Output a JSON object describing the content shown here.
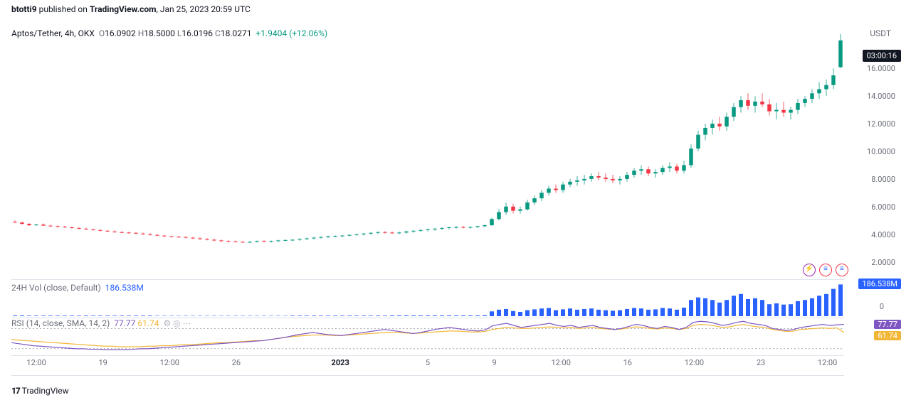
{
  "publish": {
    "author": "btotti9",
    "site": "TradingView.com",
    "date": "Jan 25, 2023 20:59 UTC"
  },
  "legend": {
    "symbol": "Aptos/Tether, 4h, OKX",
    "O": "16.0902",
    "H": "18.5000",
    "L": "16.0196",
    "C": "18.0271",
    "chg": "+1.9404",
    "pct": "(+12.06%)"
  },
  "axis": {
    "right_label": "USDT",
    "countdown": "03:00:16"
  },
  "price": {
    "ylim_min": 1,
    "ylim_max": 19,
    "ticks": [
      {
        "v": 16,
        "l": "16.0000"
      },
      {
        "v": 14,
        "l": "14.0000"
      },
      {
        "v": 12,
        "l": "12.0000"
      },
      {
        "v": 10,
        "l": "10.0000"
      },
      {
        "v": 8,
        "l": "8.0000"
      },
      {
        "v": 6,
        "l": "6.0000"
      },
      {
        "v": 4,
        "l": "4.0000"
      },
      {
        "v": 2,
        "l": "2.0000"
      }
    ],
    "colors": {
      "up": "#089981",
      "down": "#f23645",
      "wick": "#6a6d78"
    },
    "candles": [
      {
        "o": 4.9,
        "h": 5.0,
        "l": 4.8,
        "c": 4.85
      },
      {
        "o": 4.85,
        "h": 4.9,
        "l": 4.7,
        "c": 4.75
      },
      {
        "o": 4.75,
        "h": 4.8,
        "l": 4.6,
        "c": 4.65
      },
      {
        "o": 4.65,
        "h": 4.75,
        "l": 4.6,
        "c": 4.7
      },
      {
        "o": 4.7,
        "h": 4.78,
        "l": 4.6,
        "c": 4.62
      },
      {
        "o": 4.62,
        "h": 4.7,
        "l": 4.55,
        "c": 4.58
      },
      {
        "o": 4.58,
        "h": 4.65,
        "l": 4.5,
        "c": 4.55
      },
      {
        "o": 4.55,
        "h": 4.6,
        "l": 4.45,
        "c": 4.5
      },
      {
        "o": 4.5,
        "h": 4.55,
        "l": 4.4,
        "c": 4.45
      },
      {
        "o": 4.45,
        "h": 4.5,
        "l": 4.35,
        "c": 4.4
      },
      {
        "o": 4.4,
        "h": 4.48,
        "l": 4.3,
        "c": 4.35
      },
      {
        "o": 4.35,
        "h": 4.4,
        "l": 4.25,
        "c": 4.3
      },
      {
        "o": 4.3,
        "h": 4.35,
        "l": 4.2,
        "c": 4.25
      },
      {
        "o": 4.25,
        "h": 4.3,
        "l": 4.15,
        "c": 4.2
      },
      {
        "o": 4.2,
        "h": 4.28,
        "l": 4.1,
        "c": 4.15
      },
      {
        "o": 4.15,
        "h": 4.22,
        "l": 4.08,
        "c": 4.12
      },
      {
        "o": 4.12,
        "h": 4.18,
        "l": 4.05,
        "c": 4.1
      },
      {
        "o": 4.1,
        "h": 4.15,
        "l": 4.0,
        "c": 4.05
      },
      {
        "o": 4.05,
        "h": 4.12,
        "l": 3.95,
        "c": 4.0
      },
      {
        "o": 4.0,
        "h": 4.08,
        "l": 3.9,
        "c": 3.95
      },
      {
        "o": 3.95,
        "h": 4.0,
        "l": 3.85,
        "c": 3.9
      },
      {
        "o": 3.9,
        "h": 3.95,
        "l": 3.8,
        "c": 3.85
      },
      {
        "o": 3.85,
        "h": 3.9,
        "l": 3.78,
        "c": 3.82
      },
      {
        "o": 3.82,
        "h": 3.88,
        "l": 3.75,
        "c": 3.8
      },
      {
        "o": 3.8,
        "h": 3.85,
        "l": 3.7,
        "c": 3.75
      },
      {
        "o": 3.75,
        "h": 3.8,
        "l": 3.65,
        "c": 3.7
      },
      {
        "o": 3.7,
        "h": 3.78,
        "l": 3.6,
        "c": 3.65
      },
      {
        "o": 3.65,
        "h": 3.72,
        "l": 3.55,
        "c": 3.6
      },
      {
        "o": 3.6,
        "h": 3.68,
        "l": 3.5,
        "c": 3.55
      },
      {
        "o": 3.55,
        "h": 3.62,
        "l": 3.45,
        "c": 3.5
      },
      {
        "o": 3.5,
        "h": 3.58,
        "l": 3.42,
        "c": 3.48
      },
      {
        "o": 3.48,
        "h": 3.55,
        "l": 3.4,
        "c": 3.45
      },
      {
        "o": 3.45,
        "h": 3.5,
        "l": 3.38,
        "c": 3.42
      },
      {
        "o": 3.42,
        "h": 3.5,
        "l": 3.35,
        "c": 3.45
      },
      {
        "o": 3.45,
        "h": 3.55,
        "l": 3.4,
        "c": 3.5
      },
      {
        "o": 3.5,
        "h": 3.58,
        "l": 3.42,
        "c": 3.48
      },
      {
        "o": 3.48,
        "h": 3.55,
        "l": 3.4,
        "c": 3.52
      },
      {
        "o": 3.52,
        "h": 3.6,
        "l": 3.45,
        "c": 3.55
      },
      {
        "o": 3.55,
        "h": 3.62,
        "l": 3.48,
        "c": 3.58
      },
      {
        "o": 3.58,
        "h": 3.65,
        "l": 3.5,
        "c": 3.6
      },
      {
        "o": 3.6,
        "h": 3.7,
        "l": 3.52,
        "c": 3.65
      },
      {
        "o": 3.65,
        "h": 3.75,
        "l": 3.58,
        "c": 3.7
      },
      {
        "o": 3.7,
        "h": 3.8,
        "l": 3.62,
        "c": 3.75
      },
      {
        "o": 3.75,
        "h": 3.85,
        "l": 3.68,
        "c": 3.8
      },
      {
        "o": 3.8,
        "h": 3.9,
        "l": 3.72,
        "c": 3.85
      },
      {
        "o": 3.85,
        "h": 3.92,
        "l": 3.78,
        "c": 3.88
      },
      {
        "o": 3.88,
        "h": 3.95,
        "l": 3.8,
        "c": 3.9
      },
      {
        "o": 3.9,
        "h": 4.0,
        "l": 3.82,
        "c": 3.95
      },
      {
        "o": 3.95,
        "h": 4.05,
        "l": 3.88,
        "c": 4.0
      },
      {
        "o": 4.0,
        "h": 4.1,
        "l": 3.9,
        "c": 4.05
      },
      {
        "o": 4.05,
        "h": 4.15,
        "l": 3.95,
        "c": 4.1
      },
      {
        "o": 4.1,
        "h": 4.2,
        "l": 4.0,
        "c": 4.15
      },
      {
        "o": 4.15,
        "h": 4.22,
        "l": 4.05,
        "c": 4.12
      },
      {
        "o": 4.12,
        "h": 4.2,
        "l": 4.02,
        "c": 4.08
      },
      {
        "o": 4.08,
        "h": 4.18,
        "l": 4.0,
        "c": 4.12
      },
      {
        "o": 4.12,
        "h": 4.25,
        "l": 4.05,
        "c": 4.2
      },
      {
        "o": 4.2,
        "h": 4.3,
        "l": 4.1,
        "c": 4.25
      },
      {
        "o": 4.25,
        "h": 4.35,
        "l": 4.15,
        "c": 4.3
      },
      {
        "o": 4.3,
        "h": 4.4,
        "l": 4.2,
        "c": 4.35
      },
      {
        "o": 4.35,
        "h": 4.45,
        "l": 4.25,
        "c": 4.4
      },
      {
        "o": 4.4,
        "h": 4.5,
        "l": 4.3,
        "c": 4.45
      },
      {
        "o": 4.45,
        "h": 4.55,
        "l": 4.35,
        "c": 4.5
      },
      {
        "o": 4.5,
        "h": 4.6,
        "l": 4.4,
        "c": 4.52
      },
      {
        "o": 4.52,
        "h": 4.6,
        "l": 4.42,
        "c": 4.48
      },
      {
        "o": 4.48,
        "h": 4.58,
        "l": 4.4,
        "c": 4.52
      },
      {
        "o": 4.52,
        "h": 4.62,
        "l": 4.45,
        "c": 4.58
      },
      {
        "o": 4.58,
        "h": 4.7,
        "l": 4.5,
        "c": 4.65
      },
      {
        "o": 4.65,
        "h": 5.2,
        "l": 4.6,
        "c": 5.1
      },
      {
        "o": 5.1,
        "h": 5.8,
        "l": 5.0,
        "c": 5.6
      },
      {
        "o": 5.6,
        "h": 6.3,
        "l": 5.4,
        "c": 6.0
      },
      {
        "o": 6.0,
        "h": 6.2,
        "l": 5.5,
        "c": 5.7
      },
      {
        "o": 5.7,
        "h": 6.0,
        "l": 5.5,
        "c": 5.8
      },
      {
        "o": 5.8,
        "h": 6.5,
        "l": 5.7,
        "c": 6.3
      },
      {
        "o": 6.3,
        "h": 6.8,
        "l": 6.1,
        "c": 6.6
      },
      {
        "o": 6.6,
        "h": 7.2,
        "l": 6.4,
        "c": 7.0
      },
      {
        "o": 7.0,
        "h": 7.5,
        "l": 6.8,
        "c": 7.3
      },
      {
        "o": 7.3,
        "h": 7.6,
        "l": 7.0,
        "c": 7.2
      },
      {
        "o": 7.2,
        "h": 7.8,
        "l": 7.0,
        "c": 7.6
      },
      {
        "o": 7.6,
        "h": 8.0,
        "l": 7.4,
        "c": 7.8
      },
      {
        "o": 7.8,
        "h": 8.2,
        "l": 7.5,
        "c": 7.9
      },
      {
        "o": 7.9,
        "h": 8.3,
        "l": 7.6,
        "c": 8.0
      },
      {
        "o": 8.0,
        "h": 8.4,
        "l": 7.8,
        "c": 8.2
      },
      {
        "o": 8.2,
        "h": 8.5,
        "l": 7.9,
        "c": 8.1
      },
      {
        "o": 8.1,
        "h": 8.4,
        "l": 7.8,
        "c": 8.0
      },
      {
        "o": 8.0,
        "h": 8.3,
        "l": 7.7,
        "c": 7.9
      },
      {
        "o": 7.9,
        "h": 8.2,
        "l": 7.6,
        "c": 8.0
      },
      {
        "o": 8.0,
        "h": 8.5,
        "l": 7.8,
        "c": 8.3
      },
      {
        "o": 8.3,
        "h": 8.8,
        "l": 8.1,
        "c": 8.6
      },
      {
        "o": 8.6,
        "h": 9.0,
        "l": 8.3,
        "c": 8.7
      },
      {
        "o": 8.7,
        "h": 8.9,
        "l": 8.2,
        "c": 8.4
      },
      {
        "o": 8.4,
        "h": 8.7,
        "l": 8.1,
        "c": 8.5
      },
      {
        "o": 8.5,
        "h": 9.0,
        "l": 8.3,
        "c": 8.8
      },
      {
        "o": 8.8,
        "h": 9.2,
        "l": 8.5,
        "c": 8.9
      },
      {
        "o": 8.9,
        "h": 9.1,
        "l": 8.4,
        "c": 8.6
      },
      {
        "o": 8.6,
        "h": 9.3,
        "l": 8.4,
        "c": 9.0
      },
      {
        "o": 9.0,
        "h": 10.5,
        "l": 8.8,
        "c": 10.2
      },
      {
        "o": 10.2,
        "h": 11.5,
        "l": 10.0,
        "c": 11.2
      },
      {
        "o": 11.2,
        "h": 12.0,
        "l": 10.8,
        "c": 11.7
      },
      {
        "o": 11.7,
        "h": 12.3,
        "l": 11.2,
        "c": 12.0
      },
      {
        "o": 12.0,
        "h": 12.5,
        "l": 11.5,
        "c": 11.8
      },
      {
        "o": 11.8,
        "h": 12.8,
        "l": 11.5,
        "c": 12.5
      },
      {
        "o": 12.5,
        "h": 13.5,
        "l": 12.2,
        "c": 13.2
      },
      {
        "o": 13.2,
        "h": 14.0,
        "l": 12.8,
        "c": 13.7
      },
      {
        "o": 13.7,
        "h": 14.2,
        "l": 13.0,
        "c": 13.3
      },
      {
        "o": 13.3,
        "h": 14.0,
        "l": 12.8,
        "c": 13.6
      },
      {
        "o": 13.6,
        "h": 14.2,
        "l": 13.2,
        "c": 13.4
      },
      {
        "o": 13.4,
        "h": 13.8,
        "l": 12.6,
        "c": 12.9
      },
      {
        "o": 12.9,
        "h": 13.5,
        "l": 12.3,
        "c": 13.0
      },
      {
        "o": 13.0,
        "h": 13.6,
        "l": 12.5,
        "c": 12.8
      },
      {
        "o": 12.8,
        "h": 13.2,
        "l": 12.3,
        "c": 13.0
      },
      {
        "o": 13.0,
        "h": 13.8,
        "l": 12.7,
        "c": 13.5
      },
      {
        "o": 13.5,
        "h": 14.0,
        "l": 13.2,
        "c": 13.8
      },
      {
        "o": 13.8,
        "h": 14.5,
        "l": 13.5,
        "c": 14.2
      },
      {
        "o": 14.2,
        "h": 15.0,
        "l": 13.8,
        "c": 14.5
      },
      {
        "o": 14.5,
        "h": 15.2,
        "l": 14.0,
        "c": 14.8
      },
      {
        "o": 14.8,
        "h": 16.0,
        "l": 14.5,
        "c": 15.5
      },
      {
        "o": 16.09,
        "h": 18.5,
        "l": 16.02,
        "c": 18.03
      }
    ]
  },
  "volume": {
    "label": "24H Vol (close, Default)",
    "value": "186.538M",
    "max": 200,
    "zero": "0",
    "color": "#2962ff",
    "bars": [
      4,
      4,
      3,
      3,
      3,
      3,
      3,
      3,
      3,
      3,
      3,
      3,
      3,
      3,
      3,
      3,
      3,
      3,
      3,
      3,
      2,
      2,
      2,
      2,
      2,
      2,
      2,
      2,
      2,
      2,
      2,
      2,
      2,
      2,
      2,
      2,
      2,
      2,
      2,
      3,
      3,
      3,
      3,
      3,
      3,
      3,
      3,
      3,
      3,
      3,
      3,
      3,
      3,
      4,
      4,
      4,
      4,
      4,
      4,
      4,
      4,
      4,
      4,
      4,
      4,
      4,
      5,
      28,
      38,
      42,
      30,
      25,
      35,
      40,
      45,
      48,
      35,
      40,
      45,
      38,
      42,
      45,
      38,
      35,
      32,
      35,
      42,
      48,
      45,
      38,
      40,
      48,
      45,
      38,
      50,
      95,
      110,
      105,
      95,
      80,
      95,
      120,
      130,
      100,
      105,
      95,
      70,
      75,
      68,
      70,
      88,
      95,
      105,
      120,
      130,
      160,
      186
    ]
  },
  "rsi": {
    "label": "RSI (14, close, SMA, 14, 2)",
    "purple_val": "77.77",
    "yellow_val": "61.74",
    "ylim_min": 20,
    "ylim_max": 90,
    "band_hi": 70,
    "band_lo": 30,
    "colors": {
      "purple": "#7e57c2",
      "yellow": "#f2b636",
      "band": "#787b86"
    },
    "purple": [
      42,
      40,
      38,
      36,
      35,
      34,
      33,
      32,
      31,
      30,
      30,
      29,
      29,
      28,
      28,
      28,
      28,
      29,
      30,
      30,
      31,
      32,
      33,
      34,
      35,
      36,
      37,
      38,
      39,
      40,
      41,
      42,
      43,
      44,
      45,
      46,
      48,
      50,
      52,
      55,
      58,
      60,
      62,
      60,
      58,
      57,
      56,
      58,
      60,
      62,
      64,
      66,
      68,
      66,
      64,
      62,
      60,
      62,
      65,
      68,
      70,
      72,
      70,
      68,
      66,
      65,
      67,
      75,
      78,
      80,
      76,
      72,
      74,
      76,
      78,
      80,
      76,
      74,
      76,
      72,
      74,
      76,
      72,
      70,
      68,
      70,
      74,
      78,
      76,
      72,
      70,
      74,
      72,
      68,
      72,
      82,
      84,
      83,
      80,
      76,
      78,
      82,
      84,
      80,
      78,
      76,
      70,
      68,
      66,
      68,
      72,
      74,
      76,
      78,
      76,
      77,
      78
    ],
    "yellow": [
      48,
      47,
      46,
      45,
      44,
      43,
      42,
      41,
      40,
      39,
      38,
      37,
      36,
      35,
      35,
      34,
      34,
      34,
      34,
      35,
      35,
      36,
      36,
      37,
      38,
      38,
      39,
      40,
      41,
      42,
      42,
      43,
      44,
      45,
      46,
      46,
      48,
      50,
      52,
      54,
      55,
      56,
      57,
      57,
      57,
      56,
      56,
      57,
      58,
      59,
      60,
      61,
      62,
      62,
      62,
      61,
      60,
      61,
      62,
      63,
      64,
      65,
      65,
      64,
      63,
      63,
      64,
      68,
      70,
      72,
      71,
      70,
      70,
      71,
      72,
      73,
      72,
      71,
      72,
      70,
      71,
      72,
      70,
      69,
      68,
      69,
      71,
      73,
      72,
      70,
      69,
      71,
      70,
      68,
      70,
      76,
      78,
      77,
      75,
      72,
      73,
      76,
      78,
      75,
      73,
      72,
      68,
      66,
      64,
      65,
      68,
      69,
      70,
      71,
      70,
      71,
      62
    ]
  },
  "xaxis": {
    "labels": [
      {
        "pos": 0.03,
        "t": "12:00"
      },
      {
        "pos": 0.11,
        "t": "19"
      },
      {
        "pos": 0.19,
        "t": "12:00"
      },
      {
        "pos": 0.27,
        "t": "26"
      },
      {
        "pos": 0.395,
        "t": "2023",
        "bold": true
      },
      {
        "pos": 0.5,
        "t": "5"
      },
      {
        "pos": 0.58,
        "t": "9"
      },
      {
        "pos": 0.66,
        "t": "12:00"
      },
      {
        "pos": 0.74,
        "t": "16"
      },
      {
        "pos": 0.82,
        "t": "12:00"
      },
      {
        "pos": 0.9,
        "t": "23"
      },
      {
        "pos": 0.98,
        "t": "12:00"
      }
    ]
  },
  "footer": {
    "logo": "TradingView"
  }
}
